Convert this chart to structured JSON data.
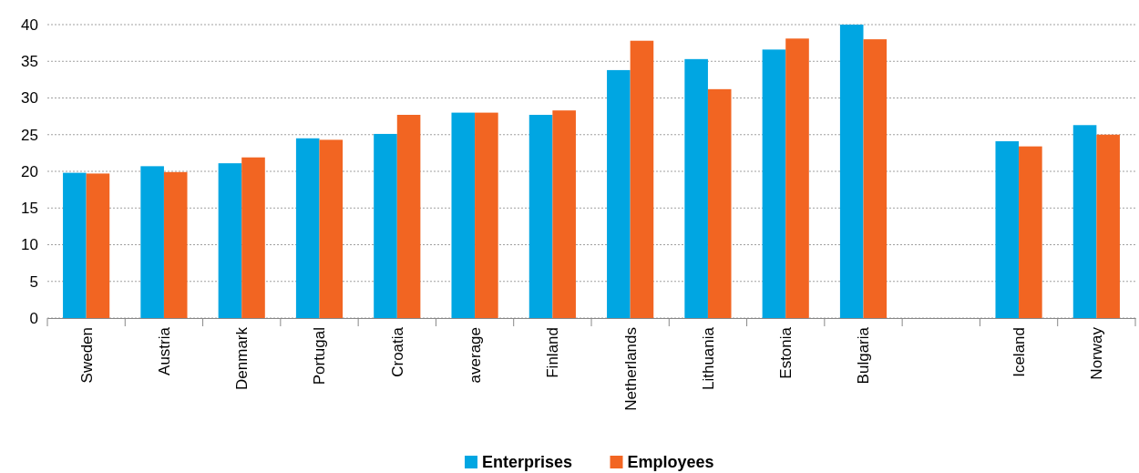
{
  "chart_data": {
    "type": "bar",
    "categories": [
      "Sweden",
      "Austria",
      "Denmark",
      "Portugal",
      "Croatia",
      "average",
      "Finland",
      "Netherlands",
      "Lithuania",
      "Estonia",
      "Bulgaria",
      null,
      "Iceland",
      "Norway"
    ],
    "series": [
      {
        "name": "Enterprises",
        "color": "#00a6e2",
        "values": [
          19.8,
          20.7,
          21.1,
          24.5,
          25.1,
          28.0,
          27.7,
          33.8,
          35.3,
          36.6,
          40.0,
          null,
          24.1,
          26.3
        ]
      },
      {
        "name": "Employees",
        "color": "#f26522",
        "values": [
          19.7,
          19.9,
          21.9,
          24.3,
          27.7,
          28.0,
          28.3,
          37.8,
          31.2,
          38.1,
          38.0,
          null,
          23.4,
          25.0
        ]
      }
    ],
    "ylim": [
      0,
      40
    ],
    "yticks": [
      0,
      5,
      10,
      15,
      20,
      25,
      30,
      35,
      40
    ],
    "grid": "y",
    "legend": "bottom"
  }
}
